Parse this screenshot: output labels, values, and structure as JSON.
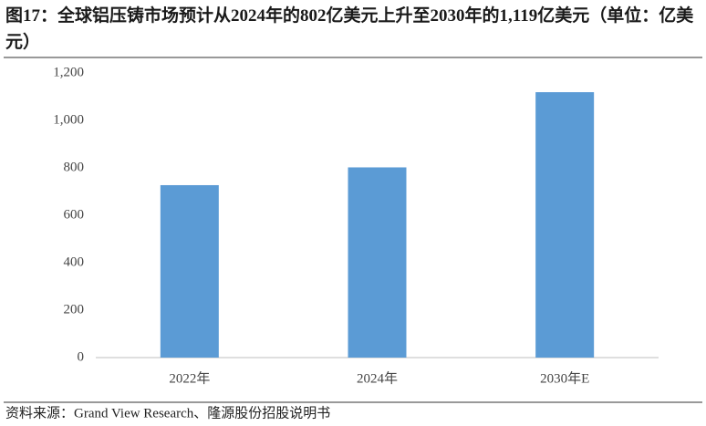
{
  "chart_data": {
    "type": "bar",
    "title": "图17：全球铝压铸市场预计从2024年的802亿美元上升至2030年的1,119亿美元（单位：亿美元）",
    "categories": [
      "2022年",
      "2024年",
      "2030年E"
    ],
    "values": [
      727,
      802,
      1119
    ],
    "color": "#5b9bd5",
    "ylim": [
      0,
      1200
    ],
    "yticks": [
      0,
      200,
      400,
      600,
      800,
      {
        "value": 1000,
        "label": "1,000"
      },
      {
        "value": 1200,
        "label": "1,200"
      }
    ],
    "grid": false,
    "source": "资料来源：Grand View Research、隆源股份招股说明书"
  }
}
